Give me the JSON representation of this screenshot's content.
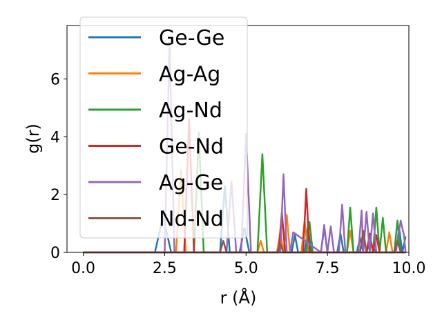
{
  "chart_data": {
    "type": "line",
    "title": "",
    "xlabel": "r (Å)",
    "ylabel": "g(r)",
    "xlim": [
      -0.5,
      10.0
    ],
    "ylim": [
      0,
      7.85
    ],
    "xticks": [
      0.0,
      2.5,
      5.0,
      7.5,
      10.0
    ],
    "xtick_labels": [
      "0.0",
      "2.5",
      "5.0",
      "7.5",
      "10.0"
    ],
    "yticks": [
      0,
      2,
      4,
      6
    ],
    "ytick_labels": [
      "0",
      "2",
      "4",
      "6"
    ],
    "grid": false,
    "legend_position": "upper-left",
    "series": [
      {
        "name": "Ge-Ge",
        "color": "#1f77b4",
        "x": [
          0.0,
          2.2,
          2.45,
          2.7,
          4.2,
          4.35,
          4.5,
          4.8,
          4.95,
          5.1,
          6.4,
          6.5,
          6.6,
          6.8,
          6.9,
          7.0,
          7.3,
          7.4,
          7.5,
          7.8,
          7.9,
          8.0,
          8.4,
          8.5,
          8.6,
          8.7,
          8.8,
          9.0,
          9.6,
          9.7,
          9.8,
          9.9
        ],
        "y": [
          0.0,
          0.0,
          1.25,
          0.0,
          0.0,
          2.3,
          0.0,
          0.0,
          0.85,
          0.0,
          0.0,
          0.6,
          0.0,
          0.0,
          0.9,
          0.0,
          0.0,
          0.85,
          0.0,
          0.0,
          0.65,
          0.0,
          0.0,
          0.5,
          0.0,
          0.0,
          0.35,
          0.0,
          0.0,
          0.85,
          0.0,
          0.55
        ]
      },
      {
        "name": "Ag-Ag",
        "color": "#ff7f0e",
        "x": [
          0.0,
          2.85,
          3.0,
          3.15,
          5.35,
          5.45,
          5.55,
          5.95,
          6.05,
          6.15,
          6.25,
          6.35,
          6.7,
          6.8,
          6.9,
          8.1,
          8.2,
          8.3,
          9.3,
          9.4,
          9.5,
          9.9
        ],
        "y": [
          0.0,
          0.0,
          2.85,
          0.0,
          0.0,
          0.4,
          0.0,
          0.0,
          0.7,
          0.0,
          1.3,
          0.0,
          0.0,
          1.1,
          0.0,
          0.0,
          0.75,
          0.0,
          0.0,
          0.7,
          0.0,
          0.0
        ]
      },
      {
        "name": "Ag-Nd",
        "color": "#2ca02c",
        "x": [
          0.0,
          3.4,
          3.55,
          3.7,
          5.35,
          5.5,
          5.65,
          6.85,
          6.95,
          7.05,
          8.1,
          8.2,
          8.3,
          8.9,
          9.0,
          9.1,
          9.2,
          9.3,
          9.55,
          9.65,
          9.75,
          9.9
        ],
        "y": [
          0.0,
          0.0,
          4.15,
          0.0,
          0.0,
          3.4,
          0.0,
          0.0,
          1.05,
          0.0,
          0.0,
          1.55,
          0.0,
          0.0,
          1.55,
          0.0,
          1.2,
          0.0,
          0.0,
          1.1,
          0.0,
          0.0
        ]
      },
      {
        "name": "Ge-Nd",
        "color": "#d62728",
        "x": [
          0.0,
          3.1,
          3.25,
          3.4,
          6.0,
          6.1,
          6.2,
          6.75,
          6.85,
          6.95,
          8.7,
          8.8,
          8.9,
          9.0,
          9.1,
          9.9
        ],
        "y": [
          0.0,
          0.0,
          4.6,
          0.0,
          0.0,
          1.4,
          0.0,
          0.0,
          2.2,
          0.0,
          0.0,
          0.65,
          0.0,
          0.6,
          0.0,
          0.0
        ]
      },
      {
        "name": "Ag-Ge",
        "color": "#9467bd",
        "x": [
          0.0,
          2.5,
          2.65,
          2.8,
          4.4,
          4.55,
          4.7,
          4.85,
          5.0,
          5.15,
          6.05,
          6.15,
          6.25,
          6.35,
          6.45,
          7.3,
          7.4,
          7.5,
          7.6,
          7.7,
          7.85,
          7.95,
          8.05,
          8.45,
          8.55,
          8.6,
          8.7,
          8.8,
          8.9,
          9.0,
          9.1,
          9.6,
          9.75,
          9.85,
          9.9
        ],
        "y": [
          0.0,
          0.0,
          7.3,
          0.0,
          0.0,
          2.45,
          0.0,
          0.0,
          4.1,
          0.0,
          0.0,
          2.7,
          0.0,
          0.0,
          0.7,
          0.0,
          0.95,
          0.0,
          0.9,
          0.0,
          0.0,
          1.65,
          0.0,
          0.0,
          1.45,
          0.0,
          1.4,
          0.0,
          1.35,
          0.0,
          0.0,
          0.0,
          1.1,
          0.6,
          0.0
        ]
      },
      {
        "name": "Nd-Nd",
        "color": "#8c564b",
        "x": [
          0.0,
          4.2,
          4.3,
          4.4,
          5.95,
          6.05,
          6.15,
          8.5,
          8.6,
          8.7,
          9.55,
          9.65,
          9.75,
          9.9
        ],
        "y": [
          0.0,
          0.0,
          0.4,
          0.0,
          0.0,
          0.3,
          0.0,
          0.0,
          0.75,
          0.0,
          0.0,
          0.4,
          0.0,
          0.0
        ]
      }
    ]
  }
}
